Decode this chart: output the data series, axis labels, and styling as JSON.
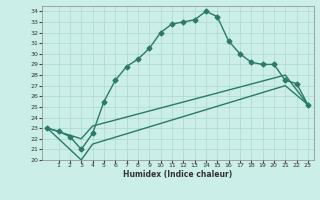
{
  "title": "",
  "xlabel": "Humidex (Indice chaleur)",
  "bg_color": "#cceee8",
  "line_color": "#2a7a6a",
  "grid_color": "#aad8d0",
  "xlim": [
    -0.5,
    23.5
  ],
  "ylim": [
    20,
    34.5
  ],
  "xticks": [
    1,
    2,
    3,
    4,
    5,
    6,
    7,
    8,
    9,
    10,
    11,
    12,
    13,
    14,
    15,
    16,
    17,
    18,
    19,
    20,
    21,
    22,
    23
  ],
  "yticks": [
    20,
    21,
    22,
    23,
    24,
    25,
    26,
    27,
    28,
    29,
    30,
    31,
    32,
    33,
    34
  ],
  "line1_x": [
    0,
    1,
    2,
    3,
    4,
    5,
    6,
    7,
    8,
    9,
    10,
    11,
    12,
    13,
    14,
    15,
    16,
    17,
    18,
    19,
    20,
    21,
    22,
    23
  ],
  "line1_y": [
    23.0,
    22.7,
    22.2,
    21.0,
    22.5,
    25.5,
    27.5,
    28.8,
    29.5,
    30.5,
    32.0,
    32.8,
    33.0,
    33.2,
    34.0,
    33.5,
    31.2,
    30.0,
    29.2,
    29.0,
    29.0,
    27.5,
    27.2,
    25.2
  ],
  "line2_x": [
    0,
    3,
    4,
    21,
    23
  ],
  "line2_y": [
    23.0,
    22.0,
    23.2,
    28.0,
    25.2
  ],
  "line3_x": [
    0,
    3,
    4,
    21,
    23
  ],
  "line3_y": [
    23.0,
    20.0,
    21.5,
    27.0,
    25.2
  ],
  "marker": "D",
  "markersize": 2.5,
  "linewidth": 1.0
}
